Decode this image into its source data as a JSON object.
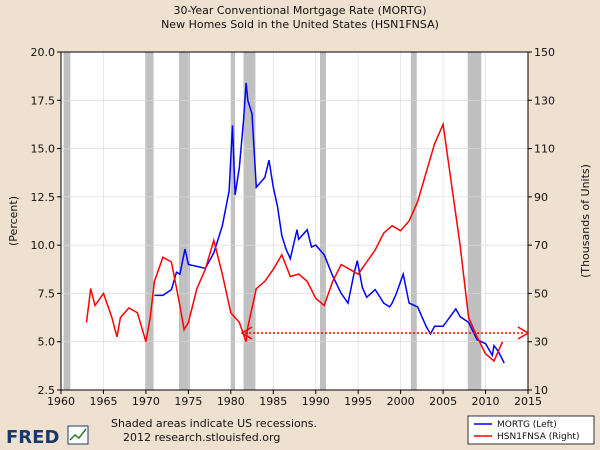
{
  "chart_data": {
    "type": "line",
    "title": "30-Year Conventional Mortgage Rate (MORTG)",
    "subtitle": "New Homes Sold in the United States (HSN1FNSA)",
    "ylabel_left": "(Percent)",
    "ylabel_right": "(Thousands of Units)",
    "xlim": [
      1960,
      2015
    ],
    "ylim_left": [
      2.5,
      20.0
    ],
    "ylim_right": [
      10,
      150
    ],
    "x_ticks": [
      "1960",
      "1965",
      "1970",
      "1975",
      "1980",
      "1985",
      "1990",
      "1995",
      "2000",
      "2005",
      "2010",
      "2015"
    ],
    "y_left_ticks": [
      "2.5",
      "5.0",
      "7.5",
      "10.0",
      "12.5",
      "15.0",
      "17.5",
      "20.0"
    ],
    "y_right_ticks": [
      "10",
      "30",
      "50",
      "70",
      "90",
      "110",
      "130",
      "150"
    ],
    "grid": true,
    "legend_position": "bottom-right",
    "recessions": [
      [
        1960.3,
        1961.1
      ],
      [
        1969.9,
        1970.9
      ],
      [
        1973.9,
        1975.2
      ],
      [
        1980.0,
        1980.5
      ],
      [
        1981.5,
        1982.9
      ],
      [
        1990.5,
        1991.2
      ],
      [
        2001.2,
        2001.9
      ],
      [
        2007.9,
        2009.5
      ]
    ],
    "series": [
      {
        "name": "MORTG (Left)",
        "axis": "left",
        "color": "#0000ff",
        "points": [
          [
            1971.0,
            7.4
          ],
          [
            1972.0,
            7.4
          ],
          [
            1973.0,
            7.7
          ],
          [
            1973.6,
            8.6
          ],
          [
            1974.0,
            8.5
          ],
          [
            1974.6,
            9.8
          ],
          [
            1975.0,
            9.0
          ],
          [
            1976.0,
            8.9
          ],
          [
            1977.0,
            8.8
          ],
          [
            1978.0,
            9.6
          ],
          [
            1979.0,
            11.0
          ],
          [
            1979.8,
            12.8
          ],
          [
            1980.2,
            16.2
          ],
          [
            1980.5,
            12.6
          ],
          [
            1981.0,
            14.0
          ],
          [
            1981.5,
            16.5
          ],
          [
            1981.8,
            18.4
          ],
          [
            1982.0,
            17.5
          ],
          [
            1982.5,
            16.8
          ],
          [
            1983.0,
            13.0
          ],
          [
            1984.0,
            13.5
          ],
          [
            1984.5,
            14.4
          ],
          [
            1985.0,
            13.0
          ],
          [
            1985.5,
            12.0
          ],
          [
            1986.0,
            10.5
          ],
          [
            1986.5,
            9.8
          ],
          [
            1987.0,
            9.3
          ],
          [
            1987.8,
            10.8
          ],
          [
            1988.0,
            10.3
          ],
          [
            1989.0,
            10.8
          ],
          [
            1989.5,
            9.9
          ],
          [
            1990.0,
            10.0
          ],
          [
            1991.0,
            9.5
          ],
          [
            1992.0,
            8.4
          ],
          [
            1993.0,
            7.5
          ],
          [
            1993.8,
            7.0
          ],
          [
            1994.5,
            8.5
          ],
          [
            1994.9,
            9.2
          ],
          [
            1995.5,
            7.8
          ],
          [
            1996.0,
            7.3
          ],
          [
            1997.0,
            7.7
          ],
          [
            1998.0,
            7.0
          ],
          [
            1998.7,
            6.8
          ],
          [
            1999.0,
            7.0
          ],
          [
            1999.5,
            7.5
          ],
          [
            2000.3,
            8.5
          ],
          [
            2001.0,
            7.0
          ],
          [
            2002.0,
            6.8
          ],
          [
            2003.0,
            5.8
          ],
          [
            2003.5,
            5.4
          ],
          [
            2004.0,
            5.8
          ],
          [
            2005.0,
            5.8
          ],
          [
            2006.0,
            6.4
          ],
          [
            2006.5,
            6.7
          ],
          [
            2007.0,
            6.3
          ],
          [
            2008.0,
            6.0
          ],
          [
            2009.0,
            5.1
          ],
          [
            2010.0,
            4.9
          ],
          [
            2010.8,
            4.3
          ],
          [
            2011.0,
            4.8
          ],
          [
            2011.5,
            4.5
          ],
          [
            2012.2,
            3.9
          ]
        ]
      },
      {
        "name": "HSN1FNSA (Right)",
        "axis": "right",
        "color": "#ff0000",
        "points": [
          [
            1963.0,
            38
          ],
          [
            1963.5,
            52
          ],
          [
            1964.0,
            45
          ],
          [
            1965.0,
            50
          ],
          [
            1966.0,
            40
          ],
          [
            1966.6,
            32
          ],
          [
            1967.0,
            40
          ],
          [
            1968.0,
            44
          ],
          [
            1969.0,
            42
          ],
          [
            1970.0,
            30
          ],
          [
            1970.5,
            40
          ],
          [
            1971.0,
            55
          ],
          [
            1972.0,
            65
          ],
          [
            1973.0,
            63
          ],
          [
            1974.0,
            45
          ],
          [
            1974.5,
            35
          ],
          [
            1975.0,
            38
          ],
          [
            1976.0,
            52
          ],
          [
            1977.0,
            60
          ],
          [
            1978.0,
            72
          ],
          [
            1979.0,
            58
          ],
          [
            1980.0,
            42
          ],
          [
            1981.0,
            38
          ],
          [
            1981.8,
            30
          ],
          [
            1982.0,
            36
          ],
          [
            1983.0,
            52
          ],
          [
            1984.0,
            55
          ],
          [
            1985.0,
            60
          ],
          [
            1986.0,
            66
          ],
          [
            1987.0,
            57
          ],
          [
            1988.0,
            58
          ],
          [
            1989.0,
            55
          ],
          [
            1990.0,
            48
          ],
          [
            1991.0,
            45
          ],
          [
            1992.0,
            55
          ],
          [
            1993.0,
            62
          ],
          [
            1994.0,
            60
          ],
          [
            1995.0,
            58
          ],
          [
            1996.0,
            63
          ],
          [
            1997.0,
            68
          ],
          [
            1998.0,
            75
          ],
          [
            1999.0,
            78
          ],
          [
            2000.0,
            76
          ],
          [
            2001.0,
            80
          ],
          [
            2002.0,
            88
          ],
          [
            2003.0,
            100
          ],
          [
            2004.0,
            112
          ],
          [
            2005.0,
            120
          ],
          [
            2006.0,
            95
          ],
          [
            2007.0,
            70
          ],
          [
            2008.0,
            40
          ],
          [
            2009.0,
            32
          ],
          [
            2010.0,
            25
          ],
          [
            2011.0,
            22
          ],
          [
            2012.0,
            30
          ]
        ]
      }
    ]
  },
  "legend": {
    "items": [
      "MORTG (Left)",
      "HSN1FNSA (Right)"
    ]
  },
  "footer": {
    "brand": "FRED",
    "note_line1": "Shaded areas indicate US recessions.",
    "note_line2": "2012 research.stlouisfed.org"
  },
  "colors": {
    "background": "#efe1d0",
    "plot": "#ffffff",
    "recession": "#c0c0c0",
    "mortg": "#0000ff",
    "hsn": "#ff0000",
    "fred_text": "#173a6b"
  }
}
